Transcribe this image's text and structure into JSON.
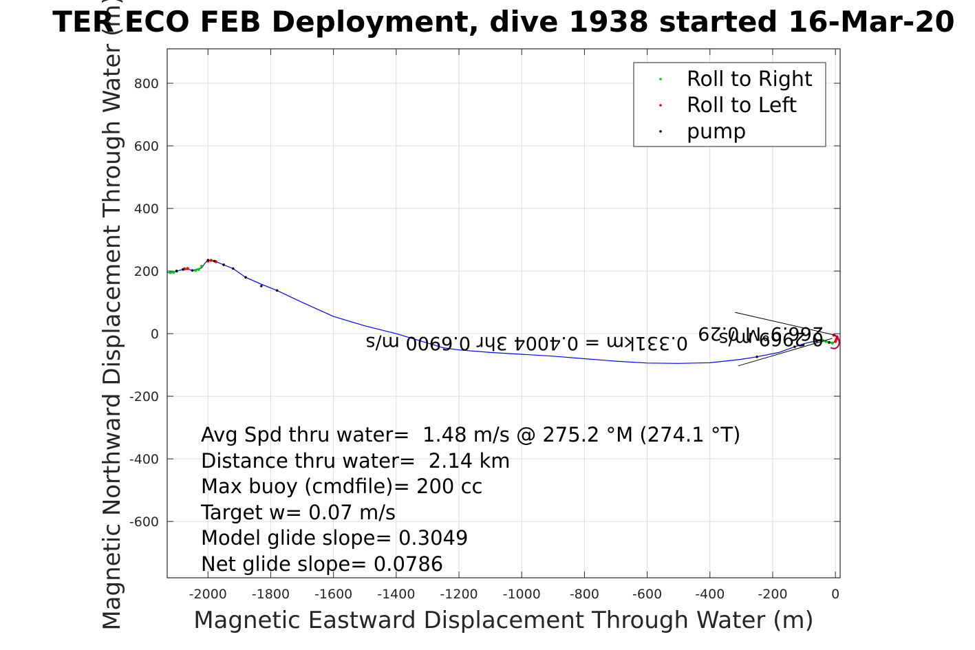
{
  "chart_data": {
    "type": "line",
    "title": "TER ECO FEB Deployment, dive 1938 started 16-Mar-20",
    "xlabel": "Magnetic Eastward Displacement Through Water (m)",
    "ylabel": "Magnetic Northward Displacement Through Water (m)",
    "xlim": [
      -2130,
      15
    ],
    "ylim": [
      -780,
      910
    ],
    "xticks": [
      -2000,
      -1800,
      -1600,
      -1400,
      -1200,
      -1000,
      -800,
      -600,
      -400,
      -200,
      0
    ],
    "yticks": [
      -600,
      -400,
      -200,
      0,
      200,
      400,
      600,
      800
    ],
    "grid": true,
    "legend_position": "top-right",
    "colors": {
      "track": "#0000ff",
      "roll_right": "#00cc00",
      "roll_left": "#ff0000",
      "pump": "#000000",
      "roll_overlap": "#b0005a"
    },
    "legend": [
      "Roll to Right",
      "Roll to Left",
      "pump"
    ],
    "track": {
      "x": [
        3,
        0,
        -10,
        -20,
        -30,
        -45,
        -60,
        -80,
        -100,
        -130,
        -180,
        -250,
        -300,
        -400,
        -500,
        -600,
        -700,
        -800,
        -900,
        -1000,
        -1100,
        -1200,
        -1250,
        -1400,
        -1500,
        -1600,
        -1700,
        -1780,
        -1830,
        -1880,
        -1920,
        -1950,
        -1980,
        -2000,
        -2010,
        -2020,
        -2040,
        -2050,
        -2060,
        -2080,
        -2100,
        -2120,
        -2130
      ],
      "y": [
        -15,
        -25,
        -30,
        -28,
        -25,
        -22,
        -24,
        -27,
        -32,
        -42,
        -60,
        -74,
        -82,
        -93,
        -95,
        -94,
        -88,
        -80,
        -72,
        -66,
        -60,
        -52,
        -45,
        0,
        25,
        55,
        100,
        138,
        158,
        180,
        208,
        220,
        232,
        235,
        225,
        210,
        205,
        202,
        205,
        205,
        200,
        195,
        195
      ]
    },
    "pump_points": {
      "x": [
        -20,
        -60,
        -130,
        -250,
        -1780,
        -1830,
        -1880,
        -1920,
        -1950,
        -1980,
        -2000,
        -2050,
        -2080,
        -2100
      ],
      "y": [
        -28,
        -24,
        -42,
        -74,
        138,
        152,
        180,
        208,
        220,
        232,
        235,
        202,
        205,
        200
      ]
    },
    "roll_right_points": {
      "x": [
        -2120,
        -2110,
        -2100,
        -2040,
        -2030,
        -2020,
        -10,
        -20,
        -30,
        -40
      ],
      "y": [
        195,
        196,
        200,
        202,
        205,
        215,
        -30,
        -28,
        -25,
        -22
      ]
    },
    "roll_left_points": {
      "x": [
        -2075,
        -2065,
        -2000,
        -1990,
        -1975,
        5,
        3,
        0,
        -5
      ],
      "y": [
        207,
        208,
        232,
        234,
        230,
        -10,
        -18,
        -25,
        -5
      ]
    },
    "heading_lines": [
      {
        "x": [
          -320,
          0
        ],
        "y": [
          68,
          -5
        ]
      },
      {
        "x": [
          -310,
          -10
        ],
        "y": [
          -103,
          -15
        ]
      }
    ],
    "annotations": {
      "segment_label": "0.331km = 0.4004 3hr 0.6900 m/s",
      "end_label": "266.9°M 0.29",
      "end_label_overlap": "0.2969 m/s"
    },
    "stats": [
      "Avg Spd thru water=  1.48 m/s @ 275.2 °M (274.1 °T)",
      "Distance thru water=  2.14 km",
      "Max buoy (cmdfile)= 200 cc",
      "Target w= 0.07 m/s",
      "Model glide slope= 0.3049",
      "Net glide slope= 0.0786"
    ]
  }
}
